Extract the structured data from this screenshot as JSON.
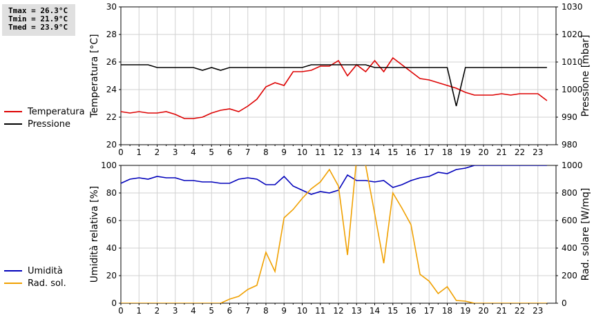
{
  "stats": {
    "tmax": "Tmax = 26.3°C",
    "tmin": "Tmin = 21.9°C",
    "tmed": "Tmed = 23.9°C"
  },
  "colors": {
    "temperature": "#dd0000",
    "pressure": "#000000",
    "humidity": "#0000bb",
    "solar": "#f0a000",
    "grid": "#d0d0d0"
  },
  "chart_data": [
    {
      "type": "line",
      "ylabel": "Temperatura [°C]",
      "y2label": "Pressione [mbar]",
      "xlim": [
        0,
        24
      ],
      "ylim": [
        20,
        30
      ],
      "y2lim": [
        980,
        1030
      ],
      "x_ticks": [
        "0",
        "1",
        "2",
        "3",
        "4",
        "5",
        "6",
        "7",
        "8",
        "9",
        "10",
        "11",
        "12",
        "13",
        "14",
        "15",
        "16",
        "17",
        "18",
        "19",
        "20",
        "21",
        "22",
        "23"
      ],
      "y_ticks": [
        "20",
        "22",
        "24",
        "26",
        "28",
        "30"
      ],
      "y2_ticks": [
        "980",
        "990",
        "1000",
        "1010",
        "1020",
        "1030"
      ],
      "grid": true,
      "legend": "left",
      "series": [
        {
          "name": "Temperatura",
          "axis": "left",
          "color": "#dd0000",
          "x": [
            0,
            0.5,
            1,
            1.5,
            2,
            2.5,
            3,
            3.5,
            4,
            4.5,
            5,
            5.5,
            6,
            6.5,
            7,
            7.5,
            8,
            8.5,
            9,
            9.5,
            10,
            10.5,
            11,
            11.5,
            12,
            12.5,
            13,
            13.5,
            14,
            14.5,
            15,
            15.5,
            16,
            16.5,
            17,
            17.5,
            18,
            18.5,
            19,
            19.5,
            20,
            20.5,
            21,
            21.5,
            22,
            22.5,
            23,
            23.5
          ],
          "y": [
            22.4,
            22.3,
            22.4,
            22.3,
            22.3,
            22.4,
            22.2,
            21.9,
            21.9,
            22.0,
            22.3,
            22.5,
            22.6,
            22.4,
            22.8,
            23.3,
            24.2,
            24.5,
            24.3,
            25.3,
            25.3,
            25.4,
            25.7,
            25.7,
            26.1,
            25.0,
            25.8,
            25.3,
            26.1,
            25.3,
            26.3,
            25.8,
            25.3,
            24.8,
            24.7,
            24.5,
            24.3,
            24.1,
            23.8,
            23.6,
            23.6,
            23.6,
            23.7,
            23.6,
            23.7,
            23.7,
            23.7,
            23.2
          ]
        },
        {
          "name": "Pressione",
          "axis": "right",
          "color": "#000000",
          "x": [
            0,
            0.5,
            1,
            1.5,
            2,
            2.5,
            3,
            3.5,
            4,
            4.5,
            5,
            5.5,
            6,
            6.5,
            7,
            7.5,
            8,
            8.5,
            9,
            9.5,
            10,
            10.5,
            11,
            11.5,
            12,
            12.5,
            13,
            13.5,
            14,
            14.5,
            15,
            15.5,
            16,
            16.5,
            17,
            17.5,
            18,
            18.5,
            19,
            19.5,
            20,
            20.5,
            21,
            21.5,
            22,
            22.5,
            23,
            23.5
          ],
          "y": [
            1009,
            1009,
            1009,
            1009,
            1008,
            1008,
            1008,
            1008,
            1008,
            1007,
            1008,
            1007,
            1008,
            1008,
            1008,
            1008,
            1008,
            1008,
            1008,
            1008,
            1008,
            1009,
            1009,
            1009,
            1009,
            1009,
            1009,
            1009,
            1008,
            1008,
            1008,
            1008,
            1008,
            1008,
            1008,
            1008,
            1008,
            994,
            1008,
            1008,
            1008,
            1008,
            1008,
            1008,
            1008,
            1008,
            1008,
            1008
          ]
        }
      ]
    },
    {
      "type": "line",
      "ylabel": "Umidità relativa [%]",
      "y2label": "Rad. solare [W/mq]",
      "xlim": [
        0,
        24
      ],
      "ylim": [
        0,
        100
      ],
      "y2lim": [
        0,
        1000
      ],
      "x_ticks": [
        "0",
        "1",
        "2",
        "3",
        "4",
        "5",
        "6",
        "7",
        "8",
        "9",
        "10",
        "11",
        "12",
        "13",
        "14",
        "15",
        "16",
        "17",
        "18",
        "19",
        "20",
        "21",
        "22",
        "23"
      ],
      "y_ticks": [
        "0",
        "20",
        "40",
        "60",
        "80",
        "100"
      ],
      "y2_ticks": [
        "0",
        "200",
        "400",
        "600",
        "800",
        "1000"
      ],
      "grid": true,
      "legend": "left",
      "series": [
        {
          "name": "Umidità",
          "axis": "left",
          "color": "#0000bb",
          "x": [
            0,
            0.5,
            1,
            1.5,
            2,
            2.5,
            3,
            3.5,
            4,
            4.5,
            5,
            5.5,
            6,
            6.5,
            7,
            7.5,
            8,
            8.5,
            9,
            9.5,
            10,
            10.5,
            11,
            11.5,
            12,
            12.5,
            13,
            13.5,
            14,
            14.5,
            15,
            15.5,
            16,
            16.5,
            17,
            17.5,
            18,
            18.5,
            19,
            19.5,
            20,
            20.5,
            21,
            21.5,
            22,
            22.5,
            23,
            23.5
          ],
          "y": [
            87,
            90,
            91,
            90,
            92,
            91,
            91,
            89,
            89,
            88,
            88,
            87,
            87,
            90,
            91,
            90,
            86,
            86,
            92,
            85,
            82,
            79,
            81,
            80,
            82,
            93,
            89,
            89,
            88,
            89,
            84,
            86,
            89,
            91,
            92,
            95,
            94,
            97,
            98,
            100,
            100,
            100,
            100,
            100,
            100,
            100,
            100,
            100
          ]
        },
        {
          "name": "Rad. sol.",
          "axis": "right",
          "color": "#f0a000",
          "x": [
            0,
            0.5,
            1,
            1.5,
            2,
            2.5,
            3,
            3.5,
            4,
            4.5,
            5,
            5.5,
            6,
            6.5,
            7,
            7.5,
            8,
            8.5,
            9,
            9.5,
            10,
            10.5,
            11,
            11.5,
            12,
            12.5,
            13,
            13.5,
            14,
            14.5,
            15,
            15.5,
            16,
            16.5,
            17,
            17.5,
            18,
            18.5,
            19,
            19.5,
            20,
            20.5,
            21,
            21.5,
            22,
            22.5,
            23,
            23.5
          ],
          "y": [
            0,
            0,
            0,
            0,
            0,
            0,
            0,
            0,
            0,
            0,
            0,
            0,
            30,
            50,
            100,
            130,
            370,
            230,
            620,
            680,
            760,
            830,
            880,
            970,
            850,
            350,
            1050,
            1000,
            650,
            290,
            800,
            690,
            570,
            210,
            160,
            70,
            120,
            20,
            15,
            0,
            0,
            0,
            0,
            0,
            0,
            0,
            0,
            0
          ]
        }
      ]
    }
  ]
}
